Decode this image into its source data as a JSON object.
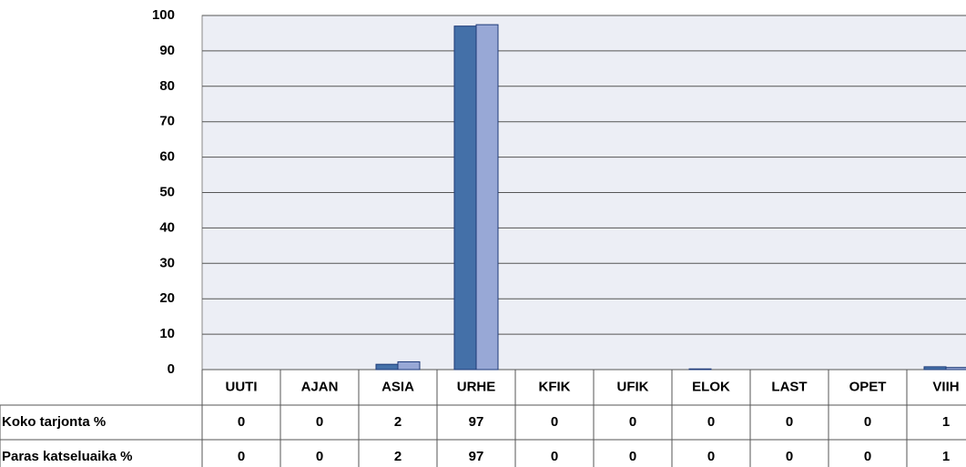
{
  "chart_data": {
    "type": "bar",
    "categories": [
      "UUTI",
      "AJAN",
      "ASIA",
      "URHE",
      "KFIK",
      "UFIK",
      "ELOK",
      "LAST",
      "OPET",
      "VIIH"
    ],
    "series": [
      {
        "name": "Koko tarjonta %",
        "color": "#4470a8",
        "values": [
          0,
          0,
          1.5,
          97,
          0,
          0,
          0.2,
          0,
          0,
          0.8
        ],
        "value_labels": [
          "0",
          "0",
          "2",
          "97",
          "0",
          "0",
          "0",
          "0",
          "0",
          "1"
        ]
      },
      {
        "name": "Paras katseluaika %",
        "color": "#98a8d6",
        "values": [
          0,
          0,
          2.2,
          97.4,
          0,
          0,
          0,
          0,
          0,
          0.6
        ],
        "value_labels": [
          "0",
          "0",
          "2",
          "97",
          "0",
          "0",
          "0",
          "0",
          "0",
          "1"
        ]
      }
    ],
    "ylim": [
      0,
      100
    ],
    "yticks": [
      0,
      10,
      20,
      30,
      40,
      50,
      60,
      70,
      80,
      90,
      100
    ],
    "grid": true
  }
}
